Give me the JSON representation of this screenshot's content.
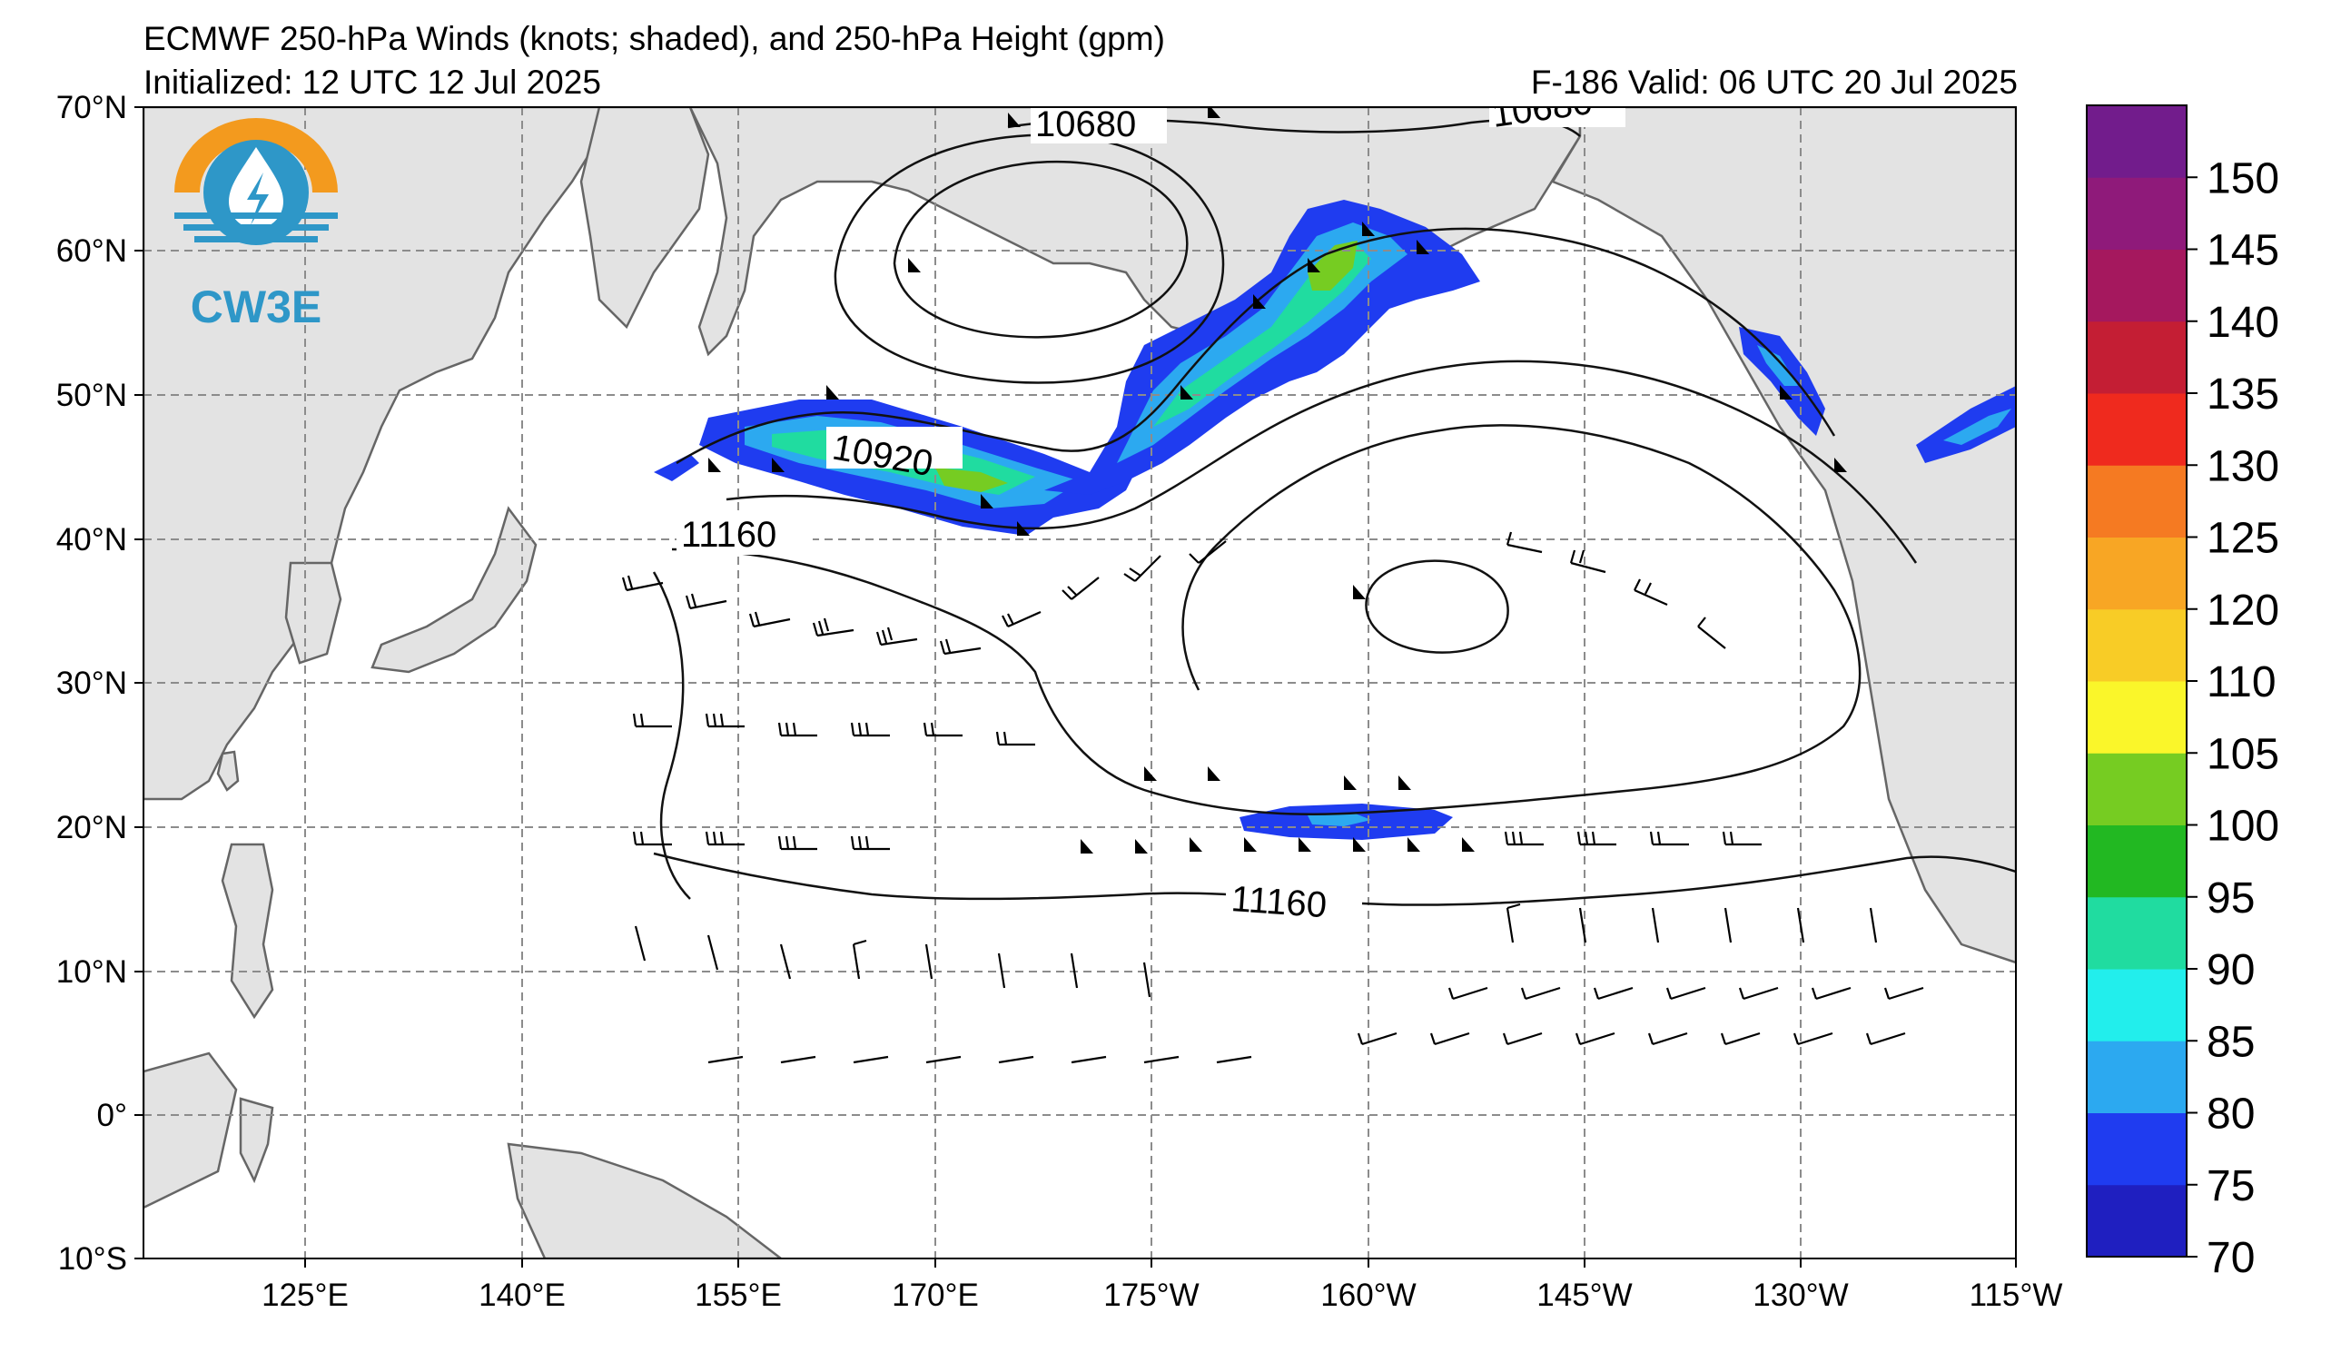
{
  "header": {
    "title": "ECMWF 250-hPa Winds (knots; shaded), and 250-hPa Height (gpm)",
    "initialized": "Initialized: 12 UTC 12 Jul 2025",
    "valid": "F-186  Valid: 06 UTC 20 Jul 2025"
  },
  "logo": {
    "text": "CW3E",
    "icon": "water-drop-logo-icon"
  },
  "map": {
    "lat_labels": [
      "70°N",
      "60°N",
      "50°N",
      "40°N",
      "30°N",
      "20°N",
      "10°N",
      "0°",
      "10°S"
    ],
    "lon_labels": [
      "125°E",
      "140°E",
      "155°E",
      "170°E",
      "175°W",
      "160°W",
      "145°W",
      "130°W",
      "115°W"
    ],
    "contour_labels": [
      "10680",
      "10680",
      "10920",
      "11160",
      "11160"
    ],
    "land_color": "#e3e3e3",
    "grid_color": "#8c8c8c"
  },
  "colorbar": {
    "labels": [
      "70",
      "75",
      "80",
      "85",
      "90",
      "95",
      "100",
      "105",
      "110",
      "120",
      "125",
      "130",
      "135",
      "140",
      "145",
      "150"
    ],
    "colors": [
      "#1f1fc0",
      "#1f3cf0",
      "#2ca9f0",
      "#22eeec",
      "#20dca0",
      "#22b822",
      "#76cc22",
      "#faf62a",
      "#f8cc26",
      "#f8a624",
      "#f57a22",
      "#ef2a1e",
      "#c41e34",
      "#a5185e",
      "#8f1a7a",
      "#721c8c"
    ]
  }
}
